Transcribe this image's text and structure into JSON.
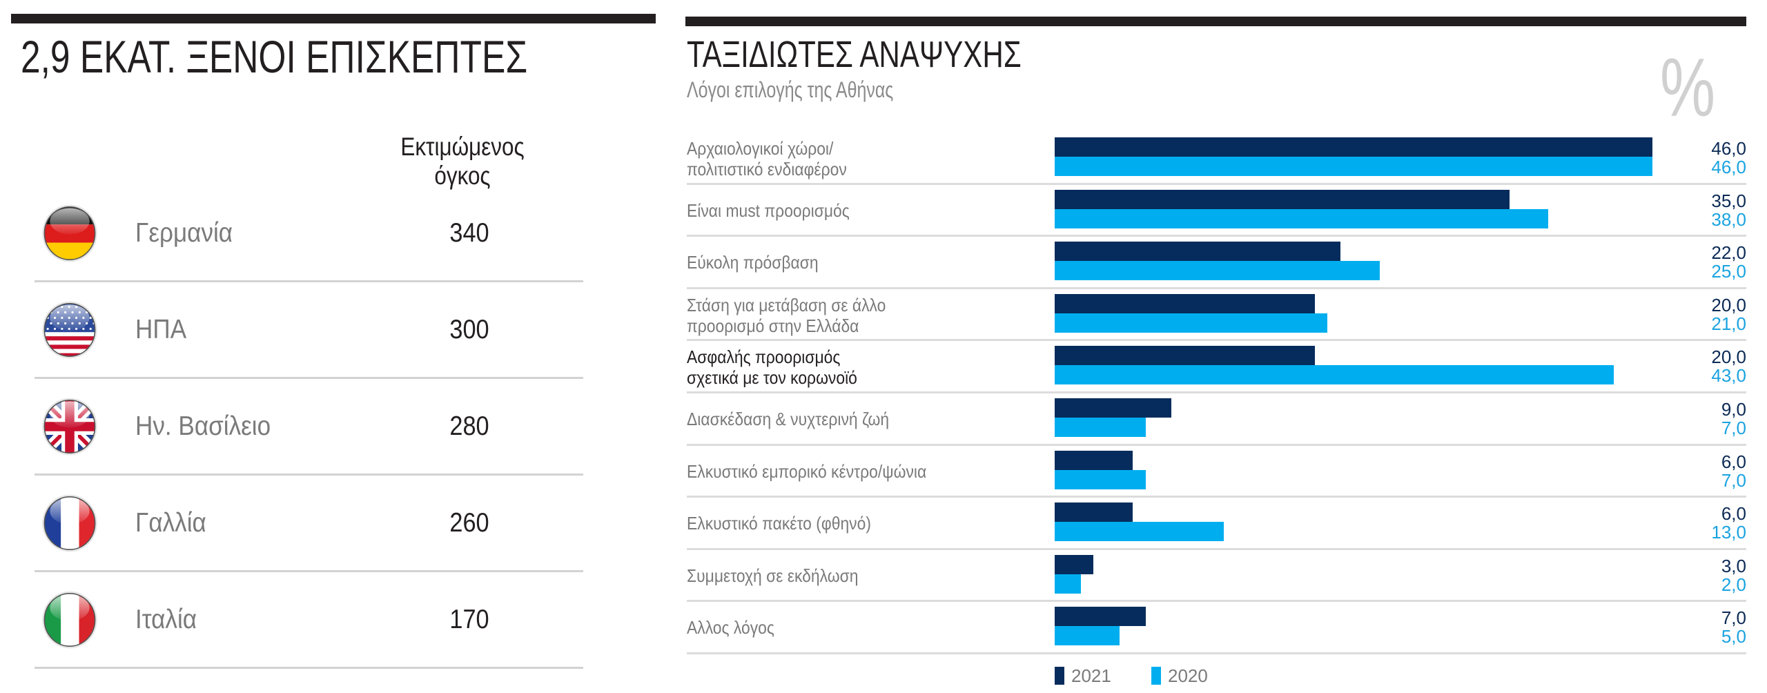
{
  "left_panel": {
    "title": "2,9 ΕΚΑΤ. ΞΕΝΟΙ ΕΠΙΣΚΕΠΤΕΣ",
    "column_header_line1": "Εκτιμώμενος",
    "column_header_line2": "όγκος",
    "rows": [
      {
        "flag": "germany-flag-icon",
        "country": "Γερμανία",
        "value": "340"
      },
      {
        "flag": "usa-flag-icon",
        "country": "ΗΠΑ",
        "value": "300"
      },
      {
        "flag": "uk-flag-icon",
        "country": "Ην. Βασίλειο",
        "value": "280"
      },
      {
        "flag": "france-flag-icon",
        "country": "Γαλλία",
        "value": "260"
      },
      {
        "flag": "italy-flag-icon",
        "country": "Ιταλία",
        "value": "170"
      }
    ]
  },
  "chart_data": {
    "type": "bar",
    "orientation": "horizontal",
    "title": "ΤΑΞΙΔΙΩΤΕΣ ΑΝΑΨΥΧΗΣ",
    "subtitle": "Λόγοι επιλογής της Αθήνας",
    "unit": "%",
    "categories": [
      [
        "Αρχαιολογικοί χώροι/",
        "πολιτιστικό ενδιαφέρον"
      ],
      [
        "Είναι must προορισμός"
      ],
      [
        "Εύκολη πρόσβαση"
      ],
      [
        "Στάση για μετάβαση σε άλλο",
        "προορισμό στην Ελλάδα"
      ],
      [
        "Ασφαλής προορισμός",
        "σχετικά με τον κορωνοϊό"
      ],
      [
        "Διασκέδαση & νυχτερινή ζωή"
      ],
      [
        "Ελκυστικό εμπορικό κέντρο/ψώνια"
      ],
      [
        "Ελκυστικό πακέτο (φθηνό)"
      ],
      [
        "Συμμετοχή σε εκδήλωση"
      ],
      [
        "Αλλος λόγος"
      ]
    ],
    "highlighted_category": 4,
    "series": [
      {
        "name": "2021",
        "color": "#052c5c",
        "values": [
          46.0,
          35.0,
          22.0,
          20.0,
          20.0,
          9.0,
          6.0,
          6.0,
          3.0,
          7.0
        ],
        "labels": [
          "46,0",
          "35,0",
          "22,0",
          "20,0",
          "20,0",
          "9,0",
          "6,0",
          "6,0",
          "3,0",
          "7,0"
        ]
      },
      {
        "name": "2020",
        "color": "#00aeef",
        "values": [
          46.0,
          38.0,
          25.0,
          21.0,
          43.0,
          7.0,
          7.0,
          13.0,
          2.0,
          5.0
        ],
        "labels": [
          "46,0",
          "38,0",
          "25,0",
          "21,0",
          "43,0",
          "7,0",
          "7,0",
          "13,0",
          "2,0",
          "5,0"
        ]
      }
    ],
    "xlim": [
      0,
      46
    ],
    "legend": "bottom",
    "grid": false
  }
}
